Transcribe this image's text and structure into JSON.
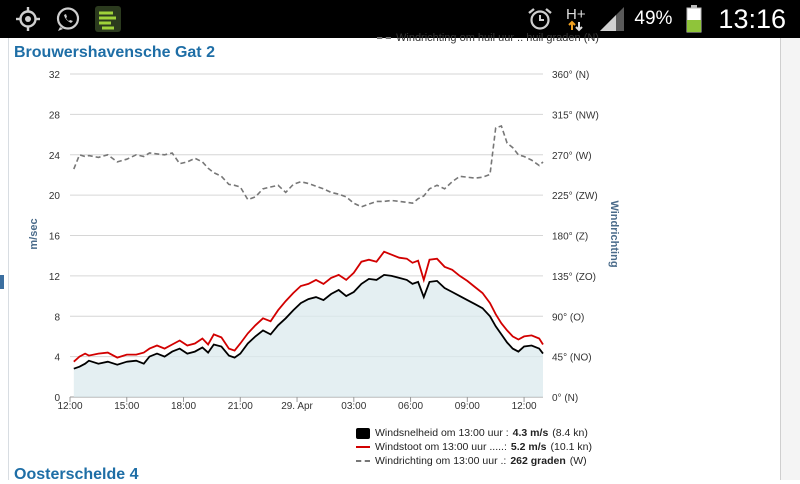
{
  "status_bar": {
    "battery": "49%",
    "time": "13:16",
    "network": "H+",
    "icons": [
      "gps-icon",
      "whatsapp-icon",
      "app-icon",
      "alarm-icon",
      "signal-icon",
      "battery-icon"
    ]
  },
  "page": {
    "title": "Brouwershavensche Gat 2",
    "next_title": "Oosterschelde 4",
    "top_legend_cut": "Windrichting om huil uur .. huil graden (N)"
  },
  "chart_data": {
    "type": "line",
    "y_left_label": "m/sec",
    "y_right_label": "Windrichting",
    "ylim_left": [
      0,
      32
    ],
    "y_left_ticks": [
      "0",
      "4",
      "8",
      "12",
      "16",
      "20",
      "24",
      "28",
      "32"
    ],
    "ylim_right": [
      0,
      360
    ],
    "y_right_ticks": [
      "0° (N)",
      "45° (NO)",
      "90° (O)",
      "135° (ZO)",
      "180° (Z)",
      "225° (ZW)",
      "270° (W)",
      "315° (NW)",
      "360° (N)"
    ],
    "x_ticks": [
      "12:00",
      "15:00",
      "18:00",
      "21:00",
      "29. Apr",
      "03:00",
      "06:00",
      "09:00",
      "12:00"
    ],
    "x_range_hours": [
      0,
      25
    ],
    "series": [
      {
        "name": "Windsnelheid",
        "color": "#000000",
        "area": true,
        "points": [
          [
            0.2,
            2.8
          ],
          [
            0.5,
            3.0
          ],
          [
            0.8,
            3.3
          ],
          [
            1.0,
            3.6
          ],
          [
            1.5,
            3.3
          ],
          [
            2.0,
            3.5
          ],
          [
            2.5,
            3.2
          ],
          [
            3.0,
            3.5
          ],
          [
            3.5,
            3.6
          ],
          [
            3.9,
            3.3
          ],
          [
            4.2,
            4.0
          ],
          [
            4.6,
            4.3
          ],
          [
            5.0,
            4.0
          ],
          [
            5.4,
            4.5
          ],
          [
            5.8,
            4.8
          ],
          [
            6.2,
            4.3
          ],
          [
            6.6,
            4.5
          ],
          [
            7.0,
            4.9
          ],
          [
            7.3,
            4.4
          ],
          [
            7.6,
            5.2
          ],
          [
            8.0,
            5.0
          ],
          [
            8.4,
            4.1
          ],
          [
            8.7,
            3.9
          ],
          [
            9.0,
            4.3
          ],
          [
            9.4,
            5.3
          ],
          [
            9.8,
            6.0
          ],
          [
            10.2,
            6.6
          ],
          [
            10.6,
            6.2
          ],
          [
            11.0,
            7.1
          ],
          [
            11.4,
            7.8
          ],
          [
            11.8,
            8.6
          ],
          [
            12.2,
            9.3
          ],
          [
            12.6,
            9.7
          ],
          [
            13.0,
            9.9
          ],
          [
            13.4,
            9.6
          ],
          [
            13.8,
            10.2
          ],
          [
            14.2,
            10.6
          ],
          [
            14.6,
            10.0
          ],
          [
            15.0,
            10.4
          ],
          [
            15.4,
            11.2
          ],
          [
            15.8,
            11.7
          ],
          [
            16.2,
            11.6
          ],
          [
            16.6,
            12.1
          ],
          [
            17.0,
            12.0
          ],
          [
            17.4,
            11.8
          ],
          [
            17.8,
            11.6
          ],
          [
            18.1,
            11.2
          ],
          [
            18.4,
            11.4
          ],
          [
            18.7,
            9.9
          ],
          [
            19.0,
            11.4
          ],
          [
            19.4,
            11.5
          ],
          [
            19.8,
            10.8
          ],
          [
            20.2,
            10.4
          ],
          [
            20.6,
            10.0
          ],
          [
            21.0,
            9.6
          ],
          [
            21.4,
            9.2
          ],
          [
            21.8,
            8.8
          ],
          [
            22.2,
            8.0
          ],
          [
            22.5,
            7.0
          ],
          [
            22.8,
            6.2
          ],
          [
            23.1,
            5.4
          ],
          [
            23.4,
            4.8
          ],
          [
            23.7,
            4.5
          ],
          [
            24.0,
            5.0
          ],
          [
            24.4,
            5.1
          ],
          [
            24.8,
            4.8
          ],
          [
            25.0,
            4.3
          ]
        ]
      },
      {
        "name": "Windstoot",
        "color": "#d20000",
        "points": [
          [
            0.2,
            3.5
          ],
          [
            0.5,
            4.0
          ],
          [
            0.8,
            4.3
          ],
          [
            1.0,
            4.1
          ],
          [
            1.5,
            4.3
          ],
          [
            2.0,
            4.4
          ],
          [
            2.5,
            3.9
          ],
          [
            3.0,
            4.2
          ],
          [
            3.5,
            4.2
          ],
          [
            3.9,
            4.4
          ],
          [
            4.2,
            4.8
          ],
          [
            4.6,
            5.1
          ],
          [
            5.0,
            4.8
          ],
          [
            5.4,
            5.2
          ],
          [
            5.8,
            5.6
          ],
          [
            6.2,
            5.1
          ],
          [
            6.6,
            5.3
          ],
          [
            7.0,
            5.8
          ],
          [
            7.3,
            5.2
          ],
          [
            7.6,
            6.2
          ],
          [
            8.0,
            5.9
          ],
          [
            8.4,
            4.8
          ],
          [
            8.7,
            4.6
          ],
          [
            9.0,
            5.3
          ],
          [
            9.4,
            6.3
          ],
          [
            9.8,
            7.1
          ],
          [
            10.2,
            7.8
          ],
          [
            10.6,
            7.5
          ],
          [
            11.0,
            8.6
          ],
          [
            11.4,
            9.5
          ],
          [
            11.8,
            10.3
          ],
          [
            12.2,
            11.0
          ],
          [
            12.6,
            11.2
          ],
          [
            13.0,
            11.6
          ],
          [
            13.4,
            11.2
          ],
          [
            13.8,
            11.8
          ],
          [
            14.2,
            12.1
          ],
          [
            14.6,
            11.6
          ],
          [
            15.0,
            12.3
          ],
          [
            15.4,
            13.4
          ],
          [
            15.8,
            13.6
          ],
          [
            16.2,
            13.4
          ],
          [
            16.6,
            14.4
          ],
          [
            17.0,
            14.1
          ],
          [
            17.4,
            13.8
          ],
          [
            17.8,
            13.7
          ],
          [
            18.1,
            13.3
          ],
          [
            18.4,
            13.5
          ],
          [
            18.7,
            11.6
          ],
          [
            19.0,
            13.6
          ],
          [
            19.4,
            13.7
          ],
          [
            19.8,
            12.9
          ],
          [
            20.2,
            12.6
          ],
          [
            20.6,
            12.0
          ],
          [
            21.0,
            11.5
          ],
          [
            21.4,
            10.9
          ],
          [
            21.8,
            10.3
          ],
          [
            22.2,
            9.3
          ],
          [
            22.5,
            8.2
          ],
          [
            22.8,
            7.3
          ],
          [
            23.1,
            6.6
          ],
          [
            23.4,
            6.0
          ],
          [
            23.7,
            5.7
          ],
          [
            24.0,
            6.0
          ],
          [
            24.4,
            6.1
          ],
          [
            24.8,
            5.8
          ],
          [
            25.0,
            5.2
          ]
        ]
      },
      {
        "name": "Windrichting",
        "color": "#777777",
        "dashed": true,
        "axis": "right",
        "points": [
          [
            0.2,
            254
          ],
          [
            0.5,
            270
          ],
          [
            0.8,
            268
          ],
          [
            1.0,
            269
          ],
          [
            1.5,
            267
          ],
          [
            2.0,
            270
          ],
          [
            2.5,
            262
          ],
          [
            3.0,
            265
          ],
          [
            3.5,
            270
          ],
          [
            3.9,
            268
          ],
          [
            4.2,
            272
          ],
          [
            4.6,
            271
          ],
          [
            5.0,
            270
          ],
          [
            5.4,
            272
          ],
          [
            5.8,
            260
          ],
          [
            6.2,
            262
          ],
          [
            6.6,
            266
          ],
          [
            7.0,
            262
          ],
          [
            7.3,
            255
          ],
          [
            7.6,
            250
          ],
          [
            8.0,
            246
          ],
          [
            8.4,
            237
          ],
          [
            8.7,
            236
          ],
          [
            9.0,
            234
          ],
          [
            9.4,
            220
          ],
          [
            9.8,
            223
          ],
          [
            10.2,
            232
          ],
          [
            10.6,
            234
          ],
          [
            11.0,
            236
          ],
          [
            11.4,
            228
          ],
          [
            11.8,
            237
          ],
          [
            12.2,
            240
          ],
          [
            12.6,
            238
          ],
          [
            13.0,
            235
          ],
          [
            13.4,
            232
          ],
          [
            13.8,
            228
          ],
          [
            14.2,
            226
          ],
          [
            14.6,
            223
          ],
          [
            15.0,
            216
          ],
          [
            15.4,
            212
          ],
          [
            15.8,
            215
          ],
          [
            16.2,
            218
          ],
          [
            16.6,
            218
          ],
          [
            17.0,
            219
          ],
          [
            17.4,
            218
          ],
          [
            17.8,
            217
          ],
          [
            18.1,
            216
          ],
          [
            18.4,
            221
          ],
          [
            18.7,
            224
          ],
          [
            19.0,
            232
          ],
          [
            19.4,
            236
          ],
          [
            19.8,
            232
          ],
          [
            20.2,
            240
          ],
          [
            20.6,
            246
          ],
          [
            21.0,
            245
          ],
          [
            21.4,
            244
          ],
          [
            21.8,
            245
          ],
          [
            22.2,
            248
          ],
          [
            22.5,
            300
          ],
          [
            22.8,
            302
          ],
          [
            23.1,
            283
          ],
          [
            23.4,
            278
          ],
          [
            23.7,
            270
          ],
          [
            24.0,
            268
          ],
          [
            24.4,
            264
          ],
          [
            24.8,
            258
          ],
          [
            25.0,
            262
          ]
        ]
      }
    ],
    "legend": [
      {
        "text": "Windsnelheid om 13:00 uur :",
        "value": "4.3 m/s",
        "unit": "(8.4 kn)"
      },
      {
        "text": "Windstoot om 13:00 uur .....:",
        "value": "5.2 m/s",
        "unit": "(10.1 kn)"
      },
      {
        "text": "Windrichting om 13:00 uur .:",
        "value": "262 graden",
        "unit": "(W)"
      }
    ]
  }
}
